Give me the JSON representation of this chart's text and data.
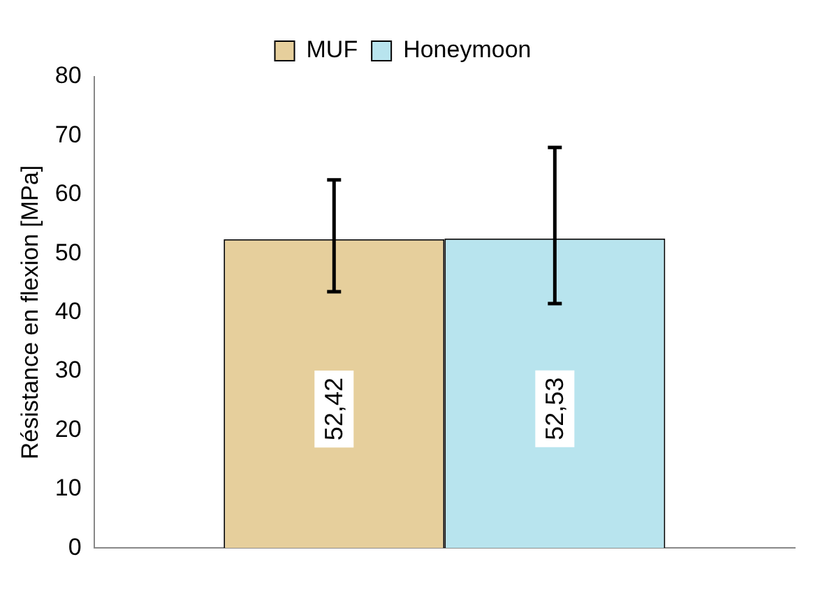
{
  "chart_data": {
    "type": "bar",
    "ylabel": "Résistance en flexion [MPa]",
    "categories": [
      null
    ],
    "series": [
      {
        "name": "MUF",
        "color": "#e6cf9c",
        "values": [
          52.42
        ],
        "errors": [
          [
            43.5,
            62.5
          ]
        ],
        "value_labels": [
          "52,42"
        ]
      },
      {
        "name": "Honeymoon",
        "color": "#b8e4ee",
        "values": [
          52.53
        ],
        "errors": [
          [
            41.5,
            68
          ]
        ],
        "value_labels": [
          "52,53"
        ]
      }
    ],
    "ylim": [
      0,
      80
    ],
    "yticks": [
      0,
      10,
      20,
      30,
      40,
      50,
      60,
      70,
      80
    ],
    "grid": false,
    "legend": "top"
  }
}
